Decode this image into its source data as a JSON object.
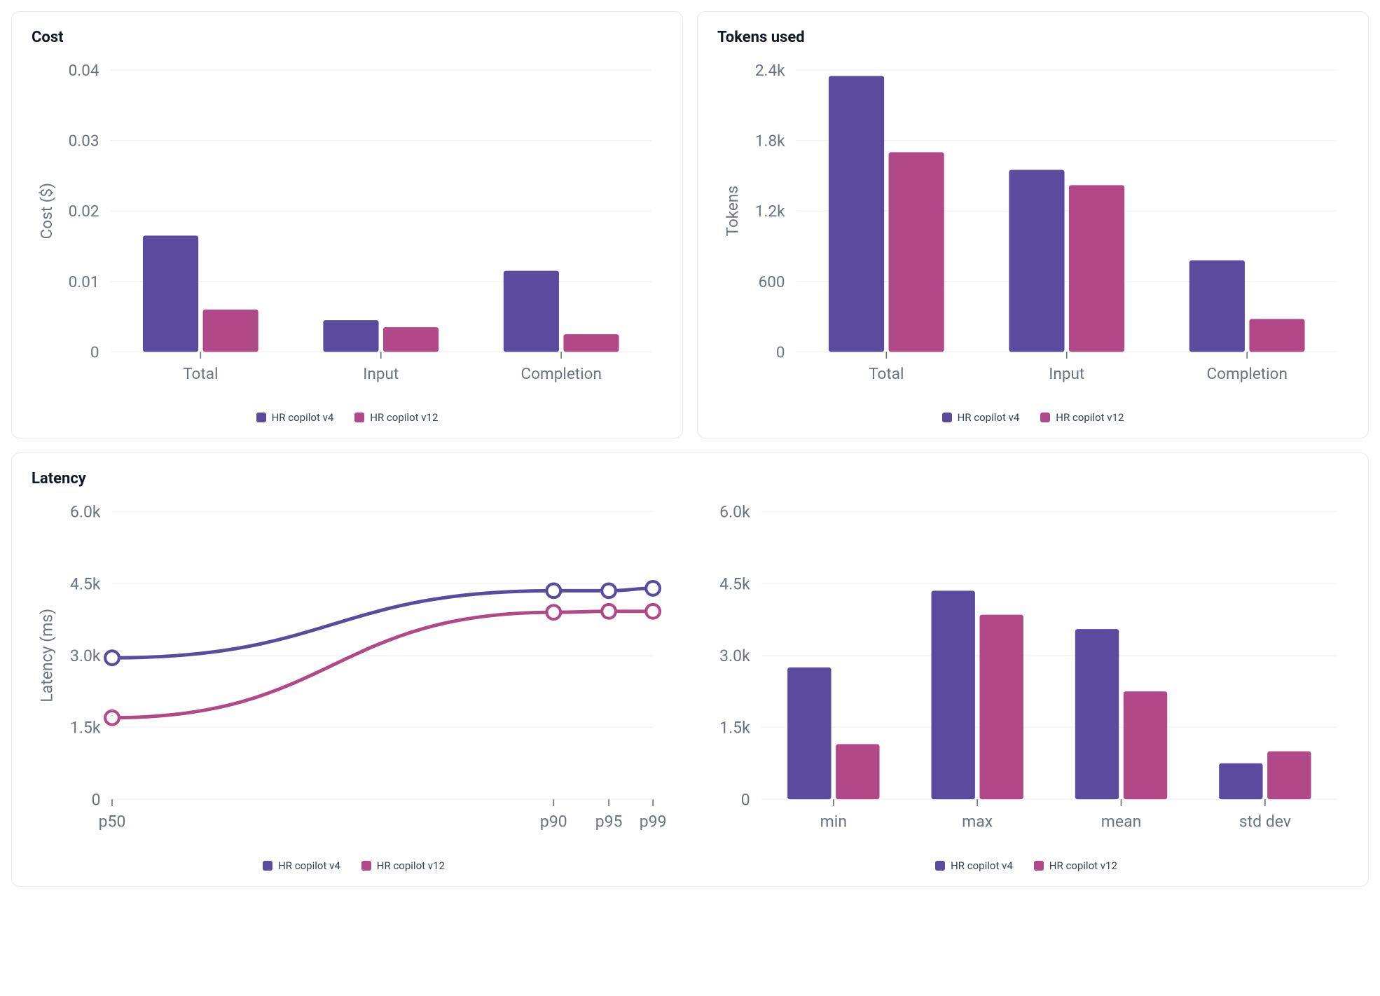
{
  "colors": {
    "series1": "#5b4b9e",
    "series2": "#b14887",
    "axis": "#6b7280",
    "grid": "#f3f4f6",
    "border": "#e5e7eb",
    "marker_fill": "#ffffff",
    "text": "#111827",
    "legend_text": "#374151"
  },
  "legend": {
    "series1": "HR copilot v4",
    "series2": "HR copilot v12"
  },
  "cost_chart": {
    "title": "Cost",
    "type": "bar",
    "y_axis_label": "Cost ($)",
    "categories": [
      "Total",
      "Input",
      "Completion"
    ],
    "yticks": [
      0,
      0.01,
      0.02,
      0.03,
      0.04
    ],
    "ytick_labels": [
      "0",
      "0.01",
      "0.02",
      "0.03",
      "0.04"
    ],
    "ylim": [
      0,
      0.04
    ],
    "series": [
      {
        "name": "HR copilot v4",
        "color": "#5b4b9e",
        "values": [
          0.0165,
          0.0045,
          0.0115
        ]
      },
      {
        "name": "HR copilot v12",
        "color": "#b14887",
        "values": [
          0.006,
          0.0035,
          0.0025
        ]
      }
    ]
  },
  "tokens_chart": {
    "title": "Tokens used",
    "type": "bar",
    "y_axis_label": "Tokens",
    "categories": [
      "Total",
      "Input",
      "Completion"
    ],
    "yticks": [
      0,
      600,
      1200,
      1800,
      2400
    ],
    "ytick_labels": [
      "0",
      "600",
      "1.2k",
      "1.8k",
      "2.4k"
    ],
    "ylim": [
      0,
      2400
    ],
    "series": [
      {
        "name": "HR copilot v4",
        "color": "#5b4b9e",
        "values": [
          2350,
          1550,
          780
        ]
      },
      {
        "name": "HR copilot v12",
        "color": "#b14887",
        "values": [
          1700,
          1420,
          280
        ]
      }
    ]
  },
  "latency_card": {
    "title": "Latency",
    "line_chart": {
      "type": "line",
      "y_axis_label": "Latency (ms)",
      "x_categories": [
        "p50",
        "p90",
        "p95",
        "p99"
      ],
      "x_positions": [
        50,
        90,
        95,
        99
      ],
      "yticks": [
        0,
        1500,
        3000,
        4500,
        6000
      ],
      "ytick_labels": [
        "0",
        "1.5k",
        "3.0k",
        "4.5k",
        "6.0k"
      ],
      "ylim": [
        0,
        6000
      ],
      "series": [
        {
          "name": "HR copilot v4",
          "color": "#5b4b9e",
          "values": [
            2950,
            4350,
            4350,
            4400
          ]
        },
        {
          "name": "HR copilot v12",
          "color": "#b14887",
          "values": [
            1700,
            3900,
            3920,
            3920
          ]
        }
      ],
      "line_width": 3,
      "marker_radius": 6
    },
    "bar_chart": {
      "type": "bar",
      "categories": [
        "min",
        "max",
        "mean",
        "std dev"
      ],
      "yticks": [
        0,
        1500,
        3000,
        4500,
        6000
      ],
      "ytick_labels": [
        "0",
        "1.5k",
        "3.0k",
        "4.5k",
        "6.0k"
      ],
      "ylim": [
        0,
        6000
      ],
      "series": [
        {
          "name": "HR copilot v4",
          "color": "#5b4b9e",
          "values": [
            2750,
            4350,
            3550,
            750
          ]
        },
        {
          "name": "HR copilot v12",
          "color": "#b14887",
          "values": [
            1150,
            3850,
            2250,
            1000
          ]
        }
      ]
    }
  }
}
